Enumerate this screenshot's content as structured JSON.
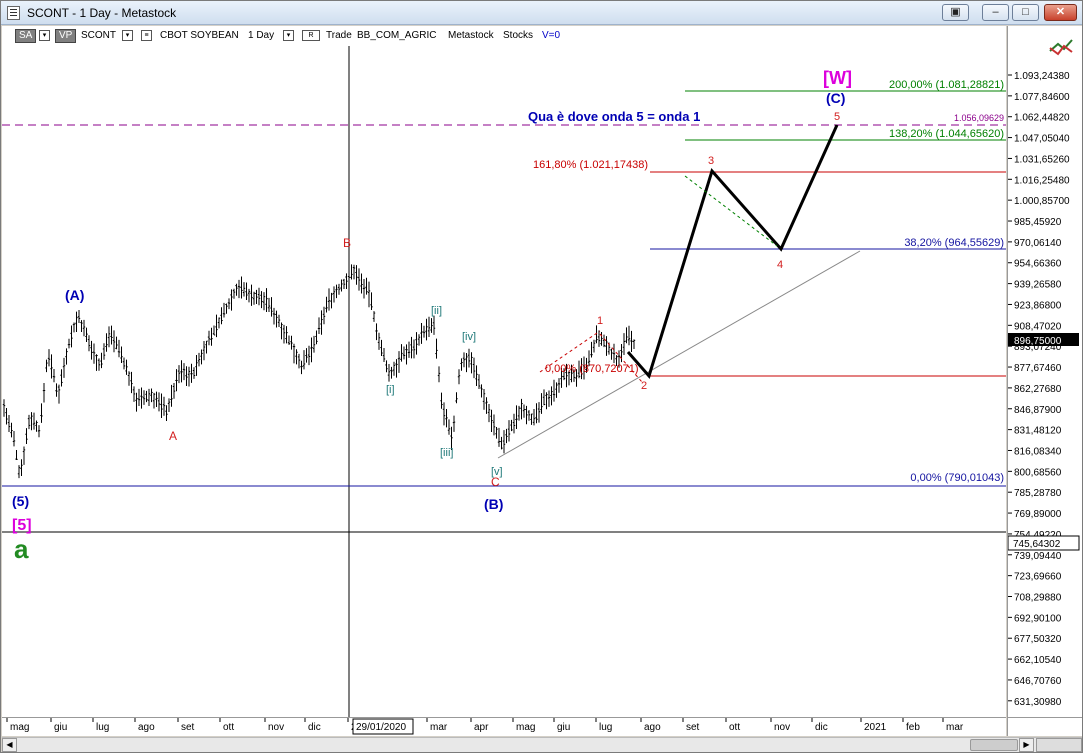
{
  "window": {
    "title": "SCONT - 1 Day - Metastock",
    "buttons": {
      "restore_extra": "▣",
      "minimize": "–",
      "maximize": "□",
      "close": "✕"
    }
  },
  "toolbar": {
    "sa": "SA",
    "vp": "VP",
    "symbol": "SCONT",
    "name": "CBOT SOYBEAN",
    "period": "1 Day",
    "r_button": "R",
    "trade": "Trade",
    "sector": "BB_COM_AGRIC",
    "source": "Metastock",
    "type": "Stocks",
    "volume": "V=0"
  },
  "icons": {
    "chart_icon": "chart-line-icon",
    "app_icon": "document-icon"
  },
  "colors": {
    "blue_label": "#0000b4",
    "red_label": "#d21e1e",
    "magenta_label": "#dc00dc",
    "green_label": "#228b22",
    "teal_label": "#1e7878",
    "fib_green": "#008000",
    "fib_red": "#c80000",
    "fib_blue": "#1414a0",
    "purple_dash": "#8b008b"
  },
  "price_axis": {
    "ticks": [
      "1.093,24380",
      "1.077,84600",
      "1.062,44820",
      "1.047,05040",
      "1.031,65260",
      "1.016,25480",
      "1.000,85700",
      "985,45920",
      "970,06140",
      "954,66360",
      "939,26580",
      "923,86800",
      "908,47020",
      "893,07240",
      "877,67460",
      "862,27680",
      "846,87900",
      "831,48120",
      "816,08340",
      "800,68560",
      "785,28780",
      "769,89000",
      "754,49220",
      "739,09440",
      "723,69660",
      "708,29880",
      "692,90100",
      "677,50320",
      "662,10540",
      "646,70760",
      "631,30980"
    ],
    "current_price": "896,75000",
    "crosshair_price": "745,64302"
  },
  "date_axis": {
    "ticks": [
      "mag",
      "giu",
      "lug",
      "ago",
      "set",
      "ott",
      "nov",
      "dic",
      "2",
      "mar",
      "apr",
      "mag",
      "giu",
      "lug",
      "ago",
      "set",
      "ott",
      "nov",
      "dic",
      "2021",
      "feb",
      "mar"
    ],
    "crosshair_date": "29/01/2020"
  },
  "annotations": {
    "headline": "Qua è dove onda 5 = onda 1",
    "fib_200": "200,00% (1.081,28821)",
    "fib_138": "138,20% (1.044,65620)",
    "fib_161": "161,80% (1.021,17438)",
    "fib_38": "38,20% (964,55629)",
    "fib_0_top": "0,00% (870,72071)",
    "fib_0_bottom": "0,00% (790,01043)",
    "purple_level": "1.056,09629",
    "wave_W": "[W]",
    "wave_C_big": "(C)",
    "wave_A_big": "(A)",
    "wave_B_big": "(B)",
    "wave_5_paren": "(5)",
    "wave_5_bracket": "[5]",
    "wave_a": "a",
    "label_A": "A",
    "label_B": "B",
    "label_C": "C",
    "label_1": "1",
    "label_2": "2",
    "label_3": "3",
    "label_4": "4",
    "label_5": "5",
    "label_i": "[i]",
    "label_ii": "[ii]",
    "label_iii": "[iii]",
    "label_iv": "[iv]",
    "label_v": "[v]"
  }
}
